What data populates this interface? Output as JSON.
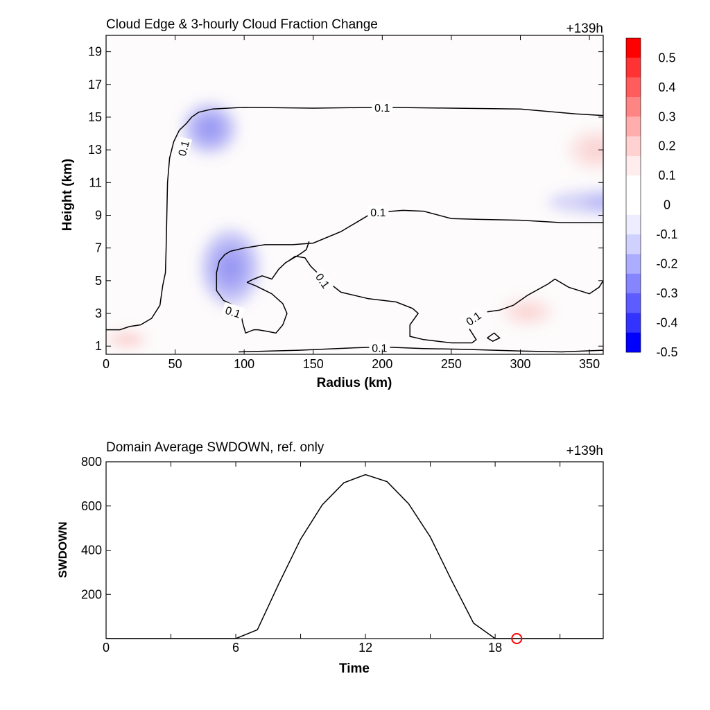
{
  "chart_data": [
    {
      "type": "heatmap",
      "title": "Cloud Edge & 3-hourly Cloud Fraction Change",
      "time_label": "+139h",
      "xlabel": "Radius (km)",
      "ylabel": "Height (km)",
      "xlim": [
        0,
        360
      ],
      "ylim": [
        0.5,
        20
      ],
      "x_ticks": [
        0,
        50,
        100,
        150,
        200,
        250,
        300,
        350
      ],
      "y_ticks": [
        1,
        3,
        5,
        7,
        9,
        11,
        13,
        15,
        17,
        19
      ],
      "contour_level": "0.1",
      "colorbar": {
        "ticks": [
          "0.5",
          "0.4",
          "0.3",
          "0.2",
          "0.1",
          "0",
          "-0.1",
          "-0.2",
          "-0.3",
          "-0.4",
          "-0.5"
        ],
        "colors": [
          "#ff0000",
          "#ff3333",
          "#ff5c5c",
          "#ff8585",
          "#ffadad",
          "#ffd1d1",
          "#ffeded",
          "#ffffff",
          "#ffffff",
          "#ededff",
          "#d1d1ff",
          "#adadff",
          "#8585ff",
          "#5c5cff",
          "#3333ff",
          "#0000ff"
        ]
      },
      "features": [
        {
          "kind": "negative",
          "x": 75,
          "y": 14.3,
          "rx": 20,
          "ry": 1.6,
          "level": -0.3
        },
        {
          "kind": "negative",
          "x": 90,
          "y": 5.8,
          "rx": 22,
          "ry": 2.4,
          "level": -0.3
        },
        {
          "kind": "negative",
          "x": 370,
          "y": 9.8,
          "rx": 50,
          "ry": 0.8,
          "level": -0.1
        },
        {
          "kind": "positive",
          "x": 15,
          "y": 1.4,
          "rx": 15,
          "ry": 0.5,
          "level": 0.15
        },
        {
          "kind": "positive",
          "x": 355,
          "y": 13,
          "rx": 20,
          "ry": 1.2,
          "level": 0.1
        },
        {
          "kind": "positive",
          "x": 305,
          "y": 3.1,
          "rx": 18,
          "ry": 0.8,
          "level": 0.1
        }
      ],
      "contours": [
        {
          "label": "0.1",
          "points": [
            [
              0,
              2
            ],
            [
              10,
              2
            ],
            [
              17,
              2.2
            ],
            [
              25,
              2.3
            ],
            [
              33,
              2.7
            ],
            [
              39,
              3.5
            ],
            [
              41,
              4.7
            ],
            [
              43,
              5.5
            ],
            [
              43.5,
              7
            ],
            [
              44,
              9
            ],
            [
              44.5,
              11
            ],
            [
              46,
              12.5
            ],
            [
              49,
              13.5
            ],
            [
              53,
              14.2
            ],
            [
              58,
              14.6
            ],
            [
              62,
              15
            ],
            [
              67,
              15.3
            ],
            [
              77,
              15.5
            ],
            [
              100,
              15.6
            ],
            [
              150,
              15.55
            ],
            [
              200,
              15.6
            ],
            [
              250,
              15.55
            ],
            [
              300,
              15.5
            ],
            [
              340,
              15.2
            ],
            [
              360,
              15.1
            ]
          ]
        },
        {
          "label": "0.1",
          "points": [
            [
              180,
              8.5
            ],
            [
              190,
              9
            ],
            [
              200,
              9.2
            ],
            [
              215,
              9.3
            ],
            [
              230,
              9.25
            ],
            [
              250,
              8.8
            ],
            [
              270,
              8.75
            ],
            [
              300,
              8.7
            ],
            [
              330,
              8.55
            ],
            [
              360,
              8.55
            ]
          ]
        },
        {
          "label": "0.1",
          "points": [
            [
              90,
              6.8
            ],
            [
              100,
              7
            ],
            [
              115,
              7.2
            ],
            [
              135,
              7.2
            ],
            [
              150,
              7.3
            ],
            [
              170,
              8
            ],
            [
              180,
              8.5
            ]
          ]
        },
        {
          "label": "0.1",
          "points": [
            [
              147,
              7.4
            ],
            [
              145,
              6.9
            ],
            [
              140,
              6.6
            ],
            [
              130,
              6.1
            ],
            [
              125,
              5.7
            ],
            [
              120,
              5.1
            ],
            [
              113,
              5.3
            ],
            [
              107,
              5.1
            ],
            [
              102,
              4.9
            ]
          ]
        },
        {
          "label": "0.1",
          "points": [
            [
              132,
              6.2
            ],
            [
              137,
              6.5
            ],
            [
              144,
              6.4
            ],
            [
              148,
              5.9
            ],
            [
              154,
              5.4
            ],
            [
              161,
              4.9
            ],
            [
              170,
              4.3
            ],
            [
              190,
              3.9
            ],
            [
              210,
              3.7
            ],
            [
              222,
              3.3
            ],
            [
              226,
              3
            ],
            [
              220,
              2.3
            ],
            [
              220,
              1.6
            ],
            [
              230,
              1.4
            ],
            [
              250,
              1.2
            ],
            [
              265,
              1.2
            ],
            [
              268,
              1.4
            ],
            [
              262,
              2.2
            ],
            [
              260,
              2.6
            ]
          ]
        },
        {
          "label": "0.1",
          "points": [
            [
              276,
              3.1
            ],
            [
              285,
              3.2
            ],
            [
              295,
              3.5
            ],
            [
              305,
              4.1
            ],
            [
              320,
              4.8
            ],
            [
              325,
              5.1
            ],
            [
              335,
              4.6
            ],
            [
              350,
              4.2
            ],
            [
              357,
              4.6
            ],
            [
              360,
              5
            ]
          ]
        },
        {
          "label": "0.1",
          "points": [
            [
              102,
              4.9
            ],
            [
              108,
              4.7
            ],
            [
              120,
              4.2
            ],
            [
              128,
              3.6
            ],
            [
              131,
              3
            ],
            [
              128,
              2.3
            ],
            [
              123,
              1.8
            ],
            [
              117,
              1.9
            ],
            [
              110,
              2
            ],
            [
              107,
              2
            ],
            [
              101,
              1.8
            ],
            [
              99,
              2.4
            ],
            [
              97,
              3.2
            ],
            [
              92,
              3.5
            ],
            [
              85,
              3.8
            ],
            [
              80,
              4.4
            ],
            [
              80,
              5.5
            ],
            [
              82,
              6.2
            ],
            [
              86,
              6.6
            ],
            [
              90,
              6.8
            ]
          ]
        },
        {
          "label": "0.1",
          "points": [
            [
              96,
              0.65
            ],
            [
              140,
              0.75
            ],
            [
              180,
              0.9
            ],
            [
              200,
              0.95
            ],
            [
              230,
              0.85
            ],
            [
              260,
              0.8
            ],
            [
              300,
              0.7
            ],
            [
              330,
              0.65
            ],
            [
              360,
              0.75
            ]
          ]
        },
        {
          "label": "",
          "points": [
            [
              276,
              1.5
            ],
            [
              281,
              1.8
            ],
            [
              285,
              1.5
            ],
            [
              280,
              1.3
            ],
            [
              276,
              1.5
            ]
          ]
        }
      ]
    },
    {
      "type": "line",
      "title": "Domain Average SWDOWN, ref. only",
      "time_label": "+139h",
      "xlabel": "Time",
      "ylabel": "SWDOWN",
      "xlim": [
        0,
        23
      ],
      "ylim": [
        0,
        800
      ],
      "x_ticks": [
        0,
        6,
        12,
        18
      ],
      "y_ticks": [
        200,
        400,
        600,
        800
      ],
      "x": [
        0,
        1,
        2,
        3,
        4,
        5,
        6,
        7,
        8,
        9,
        10,
        11,
        12,
        13,
        14,
        15,
        16,
        17,
        18,
        19,
        20,
        21,
        22,
        23
      ],
      "values": [
        0,
        0,
        0,
        0,
        0,
        0,
        0,
        40,
        250,
        450,
        605,
        705,
        742,
        710,
        610,
        460,
        260,
        70,
        0,
        0,
        0,
        0,
        0,
        0
      ],
      "marker": {
        "x": 19,
        "y": 0,
        "color": "#ff0000"
      }
    }
  ]
}
